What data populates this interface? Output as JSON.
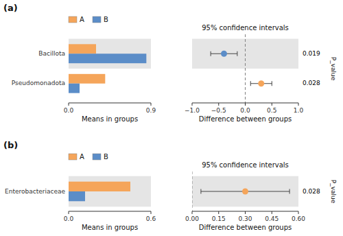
{
  "chart_data": [
    {
      "type": "bar",
      "orientation": "horizontal",
      "annotations": [
        "(a)"
      ],
      "categories": [
        "Bacillota",
        "Pseudomonadota"
      ],
      "series": [
        {
          "name": "A",
          "color": "#f5a55a",
          "values": [
            0.3,
            0.4
          ]
        },
        {
          "name": "B",
          "color": "#5b8dc8",
          "values": [
            0.85,
            0.12
          ]
        }
      ],
      "xlim": [
        0,
        0.9
      ],
      "xticks": [
        {
          "value": 0,
          "label": "0.0"
        },
        0.9
      ],
      "x_label": "Means in groups",
      "legend": "upper left"
    },
    {
      "type": "errorbar",
      "title": "95% confidence intervals",
      "x_label": "Difference between groups",
      "y2_label": "P_value",
      "values": [
        -0.4,
        0.3
      ],
      "ci_low": [
        -0.65,
        0.1
      ],
      "ci_high": [
        -0.15,
        0.5
      ],
      "p_values": [
        "0.019",
        "0.028"
      ],
      "colors": [
        "#5b8dc8",
        "#f5a55a"
      ],
      "reference_x": 0,
      "xlim": [
        -1,
        1
      ],
      "xticks": [
        {
          "value": -1,
          "label": "−1.0"
        },
        {
          "value": -0.5,
          "label": "−0.5"
        },
        {
          "value": 0,
          "label": "0.0"
        },
        0.5,
        {
          "value": 1,
          "label": "1.0"
        }
      ]
    },
    {
      "type": "bar",
      "orientation": "horizontal",
      "annotations": [
        "(b)"
      ],
      "categories": [
        "Enterobacteriaceae"
      ],
      "series": [
        {
          "name": "A",
          "color": "#f5a55a",
          "values": [
            0.45
          ]
        },
        {
          "name": "B",
          "color": "#5b8dc8",
          "values": [
            0.12
          ]
        }
      ],
      "xlim": [
        0,
        0.6
      ],
      "xticks": [
        {
          "value": 0,
          "label": "0.0"
        },
        0.6
      ],
      "x_label": "Means in groups",
      "legend": "upper left"
    },
    {
      "type": "errorbar",
      "title": "95% confidence intervals",
      "x_label": "Difference between groups",
      "y2_label": "P_value",
      "values": [
        0.3
      ],
      "ci_low": [
        0.05
      ],
      "ci_high": [
        0.55
      ],
      "p_values": [
        "0.028"
      ],
      "colors": [
        "#f5a55a"
      ],
      "reference_x": 0,
      "xlim": [
        0,
        0.6
      ],
      "xticks": [
        {
          "value": 0,
          "label": "0.00"
        },
        0.15,
        {
          "value": 0.3,
          "label": "0.30"
        },
        0.45,
        {
          "value": 0.6,
          "label": "0.60"
        }
      ]
    }
  ]
}
